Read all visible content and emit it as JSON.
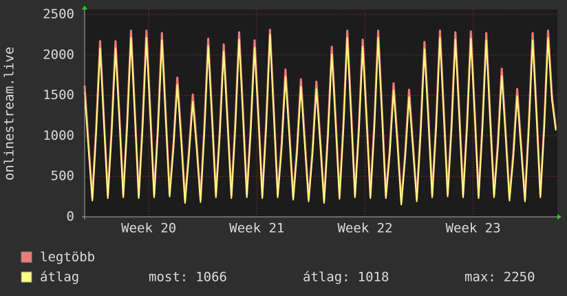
{
  "chart_data": {
    "type": "line",
    "y_label": "onlinestream.live",
    "xlim": [
      0,
      30.6
    ],
    "xticks": [
      {
        "value": 4.15,
        "label": "Week 20"
      },
      {
        "value": 11.15,
        "label": "Week 21"
      },
      {
        "value": 18.15,
        "label": "Week 22"
      },
      {
        "value": 25.15,
        "label": "Week 23"
      }
    ],
    "ylim": [
      0,
      2500
    ],
    "yticks": [
      0,
      500,
      1000,
      1500,
      2000,
      2500
    ],
    "grid": true,
    "x": [
      0,
      0.25,
      0.5,
      0.75,
      1,
      1.25,
      1.5,
      1.75,
      2,
      2.25,
      2.5,
      2.75,
      3,
      3.25,
      3.5,
      3.75,
      4,
      4.25,
      4.5,
      4.75,
      5,
      5.25,
      5.5,
      5.75,
      6,
      6.25,
      6.5,
      6.75,
      7,
      7.25,
      7.5,
      7.75,
      8,
      8.25,
      8.5,
      8.75,
      9,
      9.25,
      9.5,
      9.75,
      10,
      10.25,
      10.5,
      10.75,
      11,
      11.25,
      11.5,
      11.75,
      12,
      12.25,
      12.5,
      12.75,
      13,
      13.25,
      13.5,
      13.75,
      14,
      14.25,
      14.5,
      14.75,
      15,
      15.25,
      15.5,
      15.75,
      16,
      16.25,
      16.5,
      16.75,
      17,
      17.25,
      17.5,
      17.75,
      18,
      18.25,
      18.5,
      18.75,
      19,
      19.25,
      19.5,
      19.75,
      20,
      20.25,
      20.5,
      20.75,
      21,
      21.25,
      21.5,
      21.75,
      22,
      22.25,
      22.5,
      22.75,
      23,
      23.25,
      23.5,
      23.75,
      24,
      24.25,
      24.5,
      24.75,
      25,
      25.25,
      25.5,
      25.75,
      26,
      26.25,
      26.5,
      26.75,
      27,
      27.25,
      27.5,
      27.75,
      28,
      28.25,
      28.5,
      28.75,
      29,
      29.25,
      29.5,
      29.75,
      30,
      30.25,
      30.5
    ],
    "series": [
      {
        "name": "legtöbb",
        "color": "#f07a7a",
        "values": [
          1620,
          900,
          230,
          1100,
          2170,
          1200,
          260,
          1100,
          2170,
          1250,
          270,
          1150,
          2300,
          1300,
          260,
          1150,
          2300,
          1300,
          270,
          1130,
          2270,
          1250,
          280,
          900,
          1720,
          1000,
          200,
          800,
          1510,
          900,
          210,
          1100,
          2200,
          1250,
          270,
          1060,
          2130,
          1200,
          260,
          1140,
          2280,
          1300,
          270,
          1100,
          2180,
          1250,
          260,
          1150,
          2310,
          1300,
          270,
          900,
          1820,
          1050,
          240,
          850,
          1700,
          950,
          220,
          830,
          1670,
          950,
          200,
          1050,
          2100,
          1200,
          250,
          1150,
          2300,
          1300,
          270,
          1100,
          2190,
          1250,
          260,
          1150,
          2300,
          1300,
          260,
          830,
          1650,
          950,
          180,
          790,
          1570,
          900,
          220,
          1080,
          2160,
          1250,
          270,
          1150,
          2300,
          1300,
          280,
          1140,
          2280,
          1300,
          270,
          1150,
          2290,
          1300,
          260,
          1140,
          2270,
          1250,
          270,
          920,
          1830,
          1050,
          230,
          790,
          1580,
          900,
          220,
          1140,
          2270,
          1300,
          270,
          1150,
          2300,
          1500,
          1090
        ]
      },
      {
        "name": "átlag",
        "color": "#ffff80",
        "values": [
          1540,
          840,
          200,
          1040,
          2080,
          1140,
          230,
          1040,
          2080,
          1190,
          240,
          1090,
          2210,
          1240,
          230,
          1090,
          2210,
          1240,
          240,
          1070,
          2180,
          1190,
          250,
          840,
          1630,
          940,
          170,
          740,
          1420,
          840,
          180,
          1040,
          2110,
          1190,
          240,
          1000,
          2040,
          1140,
          230,
          1080,
          2190,
          1240,
          240,
          1040,
          2090,
          1190,
          230,
          1090,
          2250,
          1240,
          240,
          840,
          1730,
          990,
          210,
          790,
          1610,
          890,
          190,
          770,
          1580,
          890,
          170,
          990,
          2010,
          1140,
          220,
          1090,
          2210,
          1240,
          240,
          1040,
          2100,
          1190,
          230,
          1090,
          2210,
          1240,
          230,
          770,
          1560,
          890,
          150,
          730,
          1480,
          840,
          190,
          1020,
          2070,
          1190,
          240,
          1090,
          2210,
          1240,
          250,
          1080,
          2190,
          1240,
          240,
          1090,
          2200,
          1240,
          230,
          1080,
          2180,
          1190,
          240,
          860,
          1740,
          990,
          200,
          730,
          1490,
          840,
          190,
          1080,
          2180,
          1240,
          240,
          1090,
          2210,
          1440,
          1066
        ]
      }
    ],
    "stats": [
      {
        "label": "most:",
        "value": 1066
      },
      {
        "label": "átlag:",
        "value": 1018
      },
      {
        "label": "max:",
        "value": 2250
      }
    ]
  }
}
